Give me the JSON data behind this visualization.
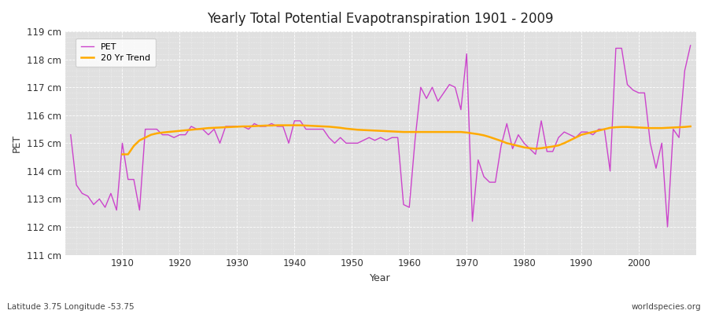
{
  "title": "Yearly Total Potential Evapotranspiration 1901 - 2009",
  "xlabel": "Year",
  "ylabel": "PET",
  "subtitle": "Latitude 3.75 Longitude -53.75",
  "watermark": "worldspecies.org",
  "fig_bg_color": "#ffffff",
  "plot_bg_color": "#e0e0e0",
  "grid_color": "#ffffff",
  "pet_color": "#cc44cc",
  "trend_color": "#ffaa00",
  "ylim": [
    111,
    119
  ],
  "xlim_min": 1900,
  "xlim_max": 2010,
  "years": [
    1901,
    1902,
    1903,
    1904,
    1905,
    1906,
    1907,
    1908,
    1909,
    1910,
    1911,
    1912,
    1913,
    1914,
    1915,
    1916,
    1917,
    1918,
    1919,
    1920,
    1921,
    1922,
    1923,
    1924,
    1925,
    1926,
    1927,
    1928,
    1929,
    1930,
    1931,
    1932,
    1933,
    1934,
    1935,
    1936,
    1937,
    1938,
    1939,
    1940,
    1941,
    1942,
    1943,
    1944,
    1945,
    1946,
    1947,
    1948,
    1949,
    1950,
    1951,
    1952,
    1953,
    1954,
    1955,
    1956,
    1957,
    1958,
    1959,
    1960,
    1961,
    1962,
    1963,
    1964,
    1965,
    1966,
    1967,
    1968,
    1969,
    1970,
    1971,
    1972,
    1973,
    1974,
    1975,
    1976,
    1977,
    1978,
    1979,
    1980,
    1981,
    1982,
    1983,
    1984,
    1985,
    1986,
    1987,
    1988,
    1989,
    1990,
    1991,
    1992,
    1993,
    1994,
    1995,
    1996,
    1997,
    1998,
    1999,
    2000,
    2001,
    2002,
    2003,
    2004,
    2005,
    2006,
    2007,
    2008,
    2009
  ],
  "pet_values": [
    115.3,
    113.5,
    113.2,
    113.1,
    112.8,
    113.0,
    112.7,
    113.2,
    112.6,
    115.0,
    113.7,
    113.7,
    112.6,
    115.5,
    115.5,
    115.5,
    115.3,
    115.3,
    115.2,
    115.3,
    115.3,
    115.6,
    115.5,
    115.5,
    115.3,
    115.5,
    115.0,
    115.6,
    115.6,
    115.6,
    115.6,
    115.5,
    115.7,
    115.6,
    115.6,
    115.7,
    115.6,
    115.6,
    115.0,
    115.8,
    115.8,
    115.5,
    115.5,
    115.5,
    115.5,
    115.2,
    115.0,
    115.2,
    115.0,
    115.0,
    115.0,
    115.1,
    115.2,
    115.1,
    115.2,
    115.1,
    115.2,
    115.2,
    112.8,
    112.7,
    115.1,
    117.0,
    116.6,
    117.0,
    116.5,
    116.8,
    117.1,
    117.0,
    116.2,
    118.2,
    112.2,
    114.4,
    113.8,
    113.6,
    113.6,
    114.9,
    115.7,
    114.8,
    115.3,
    115.0,
    114.8,
    114.6,
    115.8,
    114.7,
    114.7,
    115.2,
    115.4,
    115.3,
    115.2,
    115.4,
    115.4,
    115.3,
    115.5,
    115.5,
    114.0,
    118.4,
    118.4,
    117.1,
    116.9,
    116.8,
    116.8,
    115.0,
    114.1,
    115.0,
    112.0,
    115.5,
    115.2,
    117.6,
    118.5
  ],
  "trend_years": [
    1910,
    1911,
    1912,
    1913,
    1914,
    1915,
    1916,
    1917,
    1918,
    1919,
    1920,
    1921,
    1922,
    1923,
    1924,
    1925,
    1926,
    1927,
    1928,
    1929,
    1930,
    1931,
    1932,
    1933,
    1934,
    1935,
    1936,
    1937,
    1938,
    1939,
    1940,
    1941,
    1942,
    1943,
    1944,
    1945,
    1946,
    1947,
    1948,
    1949,
    1950,
    1951,
    1952,
    1953,
    1954,
    1955,
    1956,
    1957,
    1958,
    1959,
    1960,
    1961,
    1962,
    1963,
    1964,
    1965,
    1966,
    1967,
    1968,
    1969,
    1970,
    1971,
    1972,
    1973,
    1974,
    1975,
    1976,
    1977,
    1978,
    1979,
    1980,
    1981,
    1982,
    1983,
    1984,
    1985,
    1986,
    1987,
    1988,
    1989,
    1990,
    1991,
    1992,
    1993,
    1994,
    1995,
    1996,
    1997,
    1998,
    1999,
    2000,
    2001,
    2002,
    2003,
    2004,
    2005,
    2006,
    2007,
    2008,
    2009
  ],
  "trend_values": [
    114.6,
    114.6,
    114.9,
    115.1,
    115.2,
    115.3,
    115.35,
    115.38,
    115.4,
    115.42,
    115.44,
    115.46,
    115.48,
    115.5,
    115.52,
    115.54,
    115.55,
    115.56,
    115.57,
    115.58,
    115.59,
    115.6,
    115.6,
    115.61,
    115.62,
    115.63,
    115.63,
    115.64,
    115.64,
    115.64,
    115.64,
    115.64,
    115.63,
    115.62,
    115.61,
    115.6,
    115.59,
    115.57,
    115.55,
    115.52,
    115.5,
    115.48,
    115.47,
    115.46,
    115.45,
    115.44,
    115.43,
    115.42,
    115.41,
    115.4,
    115.4,
    115.4,
    115.4,
    115.4,
    115.4,
    115.4,
    115.4,
    115.4,
    115.4,
    115.4,
    115.38,
    115.35,
    115.32,
    115.28,
    115.22,
    115.15,
    115.08,
    115.0,
    114.95,
    114.9,
    114.85,
    114.82,
    114.8,
    114.82,
    114.85,
    114.88,
    114.92,
    115.0,
    115.1,
    115.2,
    115.3,
    115.35,
    115.4,
    115.45,
    115.5,
    115.55,
    115.57,
    115.58,
    115.58,
    115.57,
    115.56,
    115.55,
    115.54,
    115.54,
    115.54,
    115.55,
    115.56,
    115.57,
    115.58,
    115.6
  ]
}
